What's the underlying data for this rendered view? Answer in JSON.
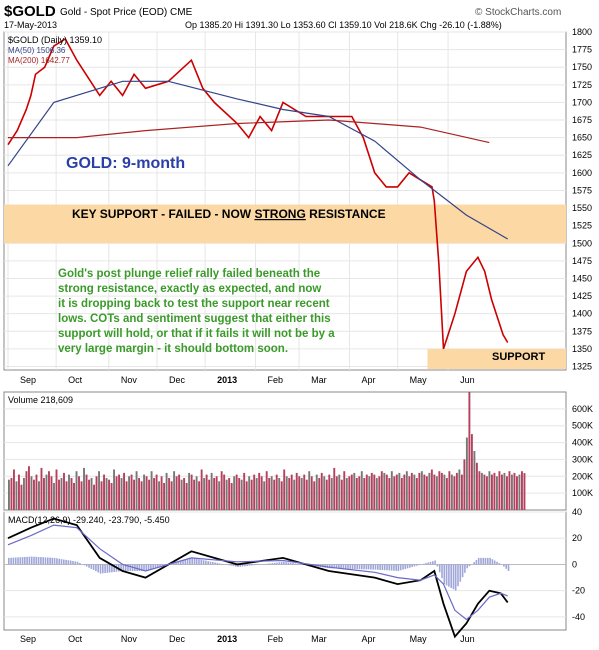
{
  "header": {
    "symbol": "$GOLD",
    "name": "Gold - Spot Price (EOD)",
    "exchange": "CME",
    "date": "17-May-2013",
    "quote": "Op 1385.20  Hi 1391.30  Lo 1353.60  Cl 1359.10  Vol 218.6K  Chg -26.10 (-1.88%)",
    "watermark": "© StockCharts.com"
  },
  "legend": {
    "price": "$GOLD (Daily) 1359.10",
    "ma50": "MA(50) 1506.36",
    "ma200": "MA(200) 1642.77"
  },
  "annotations": {
    "title": "GOLD: 9-month",
    "resistance_pre": "KEY SUPPORT - FAILED - NOW ",
    "resistance_strong": "STRONG",
    "resistance_post": " RESISTANCE",
    "support": "SUPPORT",
    "comment": [
      "Gold's post plunge relief rally failed beneath the",
      "strong resistance, exactly as expected, and now",
      "it is dropping back to test the support near recent",
      "lows. COTs and sentiment suggest that either this",
      "support will hold, or that if it fails it will not be by a",
      "very large margin - it should bottom soon."
    ]
  },
  "volume_label": "Volume 218,609",
  "macd_label": "MACD(12,26,9) -29.240, -23.790, -5.450",
  "x_labels": [
    "Sep",
    "Oct",
    "Nov",
    "Dec",
    "2013",
    "Feb",
    "Mar",
    "Apr",
    "May",
    "Jun"
  ],
  "colors": {
    "price": "#cc0000",
    "ma50": "#334488",
    "ma200": "#aa2222",
    "band": "#fcd9a4",
    "annotation_blue": "#2b3fa8",
    "annotation_green": "#3a9a2a",
    "volume_bar": "#b5405e",
    "macd_hist": "#9fa6d8"
  },
  "chart_data": [
    {
      "type": "line",
      "title": "$GOLD (Daily)",
      "x_ticks": [
        "Sep",
        "Oct",
        "Nov",
        "Dec",
        "2013",
        "Feb",
        "Mar",
        "Apr",
        "May",
        "Jun"
      ],
      "ylim": [
        1320,
        1800
      ],
      "y_ticks": [
        1325,
        1350,
        1375,
        1400,
        1425,
        1450,
        1475,
        1500,
        1525,
        1550,
        1575,
        1600,
        1625,
        1650,
        1675,
        1700,
        1725,
        1750,
        1775,
        1800
      ],
      "series": [
        {
          "name": "$GOLD (Daily)",
          "x": [
            0,
            4,
            8,
            10,
            12,
            16,
            20,
            25,
            30,
            40,
            45,
            50,
            55,
            60,
            70,
            80,
            85,
            90,
            100,
            105,
            110,
            115,
            120,
            130,
            140,
            150,
            155,
            160,
            165,
            170,
            175,
            180,
            185,
            186,
            188,
            190,
            195,
            200,
            205,
            208,
            211,
            214,
            216,
            218
          ],
          "y": [
            1640,
            1660,
            1690,
            1710,
            1740,
            1750,
            1780,
            1790,
            1760,
            1710,
            1730,
            1710,
            1740,
            1720,
            1730,
            1760,
            1720,
            1700,
            1670,
            1650,
            1680,
            1660,
            1700,
            1680,
            1680,
            1680,
            1650,
            1600,
            1580,
            1580,
            1600,
            1590,
            1580,
            1560,
            1470,
            1350,
            1400,
            1460,
            1480,
            1460,
            1420,
            1390,
            1370,
            1359
          ]
        },
        {
          "name": "MA(50)",
          "x": [
            0,
            20,
            50,
            70,
            100,
            120,
            140,
            160,
            180,
            200,
            218
          ],
          "y": [
            1610,
            1700,
            1730,
            1730,
            1705,
            1690,
            1680,
            1645,
            1590,
            1540,
            1506
          ]
        },
        {
          "name": "MA(200)",
          "x": [
            0,
            30,
            60,
            100,
            140,
            180,
            210
          ],
          "y": [
            1650,
            1650,
            1660,
            1670,
            1675,
            1665,
            1643
          ]
        }
      ],
      "support_zone": [
        1325,
        1350
      ],
      "resistance_zone": [
        1500,
        1555
      ]
    },
    {
      "type": "bar",
      "title": "Volume 218,609",
      "ylim": [
        0,
        700000
      ],
      "y_ticks": [
        100000,
        200000,
        300000,
        400000,
        500000,
        600000
      ],
      "y_tick_labels": [
        "100K",
        "200K",
        "300K",
        "400K",
        "500K",
        "600K"
      ],
      "values": [
        180000,
        190000,
        240000,
        170000,
        210000,
        150000,
        190000,
        230000,
        260000,
        200000,
        180000,
        210000,
        170000,
        250000,
        190000,
        210000,
        230000,
        200000,
        160000,
        240000,
        180000,
        190000,
        220000,
        170000,
        210000,
        190000,
        160000,
        230000,
        200000,
        170000,
        250000,
        210000,
        180000,
        190000,
        150000,
        200000,
        230000,
        170000,
        210000,
        190000,
        180000,
        160000,
        240000,
        200000,
        210000,
        190000,
        220000,
        170000,
        200000,
        210000,
        180000,
        230000,
        190000,
        170000,
        210000,
        200000,
        180000,
        230000,
        190000,
        210000,
        170000,
        200000,
        160000,
        220000,
        190000,
        170000,
        230000,
        200000,
        210000,
        180000,
        190000,
        160000,
        220000,
        210000,
        180000,
        200000,
        170000,
        240000,
        190000,
        210000,
        180000,
        220000,
        190000,
        200000,
        170000,
        230000,
        210000,
        180000,
        190000,
        160000,
        200000,
        210000,
        190000,
        180000,
        220000,
        170000,
        200000,
        180000,
        210000,
        190000,
        220000,
        200000,
        170000,
        230000,
        190000,
        200000,
        180000,
        210000,
        190000,
        170000,
        240000,
        200000,
        190000,
        210000,
        180000,
        220000,
        200000,
        190000,
        210000,
        180000,
        230000,
        200000,
        170000,
        210000,
        190000,
        220000,
        200000,
        180000,
        210000,
        190000,
        250000,
        200000,
        210000,
        180000,
        230000,
        190000,
        200000,
        210000,
        220000,
        190000,
        200000,
        230000,
        190000,
        210000,
        200000,
        220000,
        210000,
        190000,
        200000,
        230000,
        220000,
        210000,
        190000,
        230000,
        200000,
        210000,
        220000,
        190000,
        210000,
        230000,
        200000,
        220000,
        210000,
        190000,
        220000,
        230000,
        210000,
        200000,
        220000,
        240000,
        210000,
        200000,
        230000,
        220000,
        210000,
        190000,
        230000,
        210000,
        200000,
        220000,
        240000,
        210000,
        300000,
        430000,
        700000,
        450000,
        350000,
        280000,
        230000,
        220000,
        210000,
        200000,
        230000,
        210000,
        220000,
        200000,
        230000,
        210000,
        220000,
        200000,
        230000,
        210000,
        220000,
        200000,
        210000,
        230000,
        219000
      ]
    },
    {
      "type": "line",
      "title": "MACD(12,26,9)",
      "ylim": [
        -50,
        40
      ],
      "y_ticks": [
        -40,
        -20,
        0,
        20,
        40
      ],
      "series": [
        {
          "name": "MACD",
          "x": [
            0,
            10,
            20,
            30,
            40,
            50,
            60,
            80,
            100,
            120,
            140,
            160,
            170,
            180,
            186,
            190,
            195,
            200,
            205,
            210,
            215,
            218
          ],
          "y": [
            20,
            28,
            35,
            30,
            5,
            -5,
            -10,
            10,
            0,
            5,
            -5,
            -10,
            -15,
            -12,
            -5,
            -30,
            -55,
            -45,
            -30,
            -20,
            -22,
            -29
          ]
        },
        {
          "name": "Signal",
          "x": [
            0,
            10,
            20,
            30,
            40,
            50,
            60,
            80,
            100,
            120,
            140,
            160,
            170,
            180,
            186,
            190,
            195,
            200,
            205,
            210,
            215,
            218
          ],
          "y": [
            15,
            22,
            30,
            28,
            12,
            0,
            -5,
            5,
            2,
            3,
            -2,
            -6,
            -10,
            -12,
            -8,
            -15,
            -35,
            -42,
            -35,
            -25,
            -22,
            -24
          ]
        }
      ]
    }
  ]
}
